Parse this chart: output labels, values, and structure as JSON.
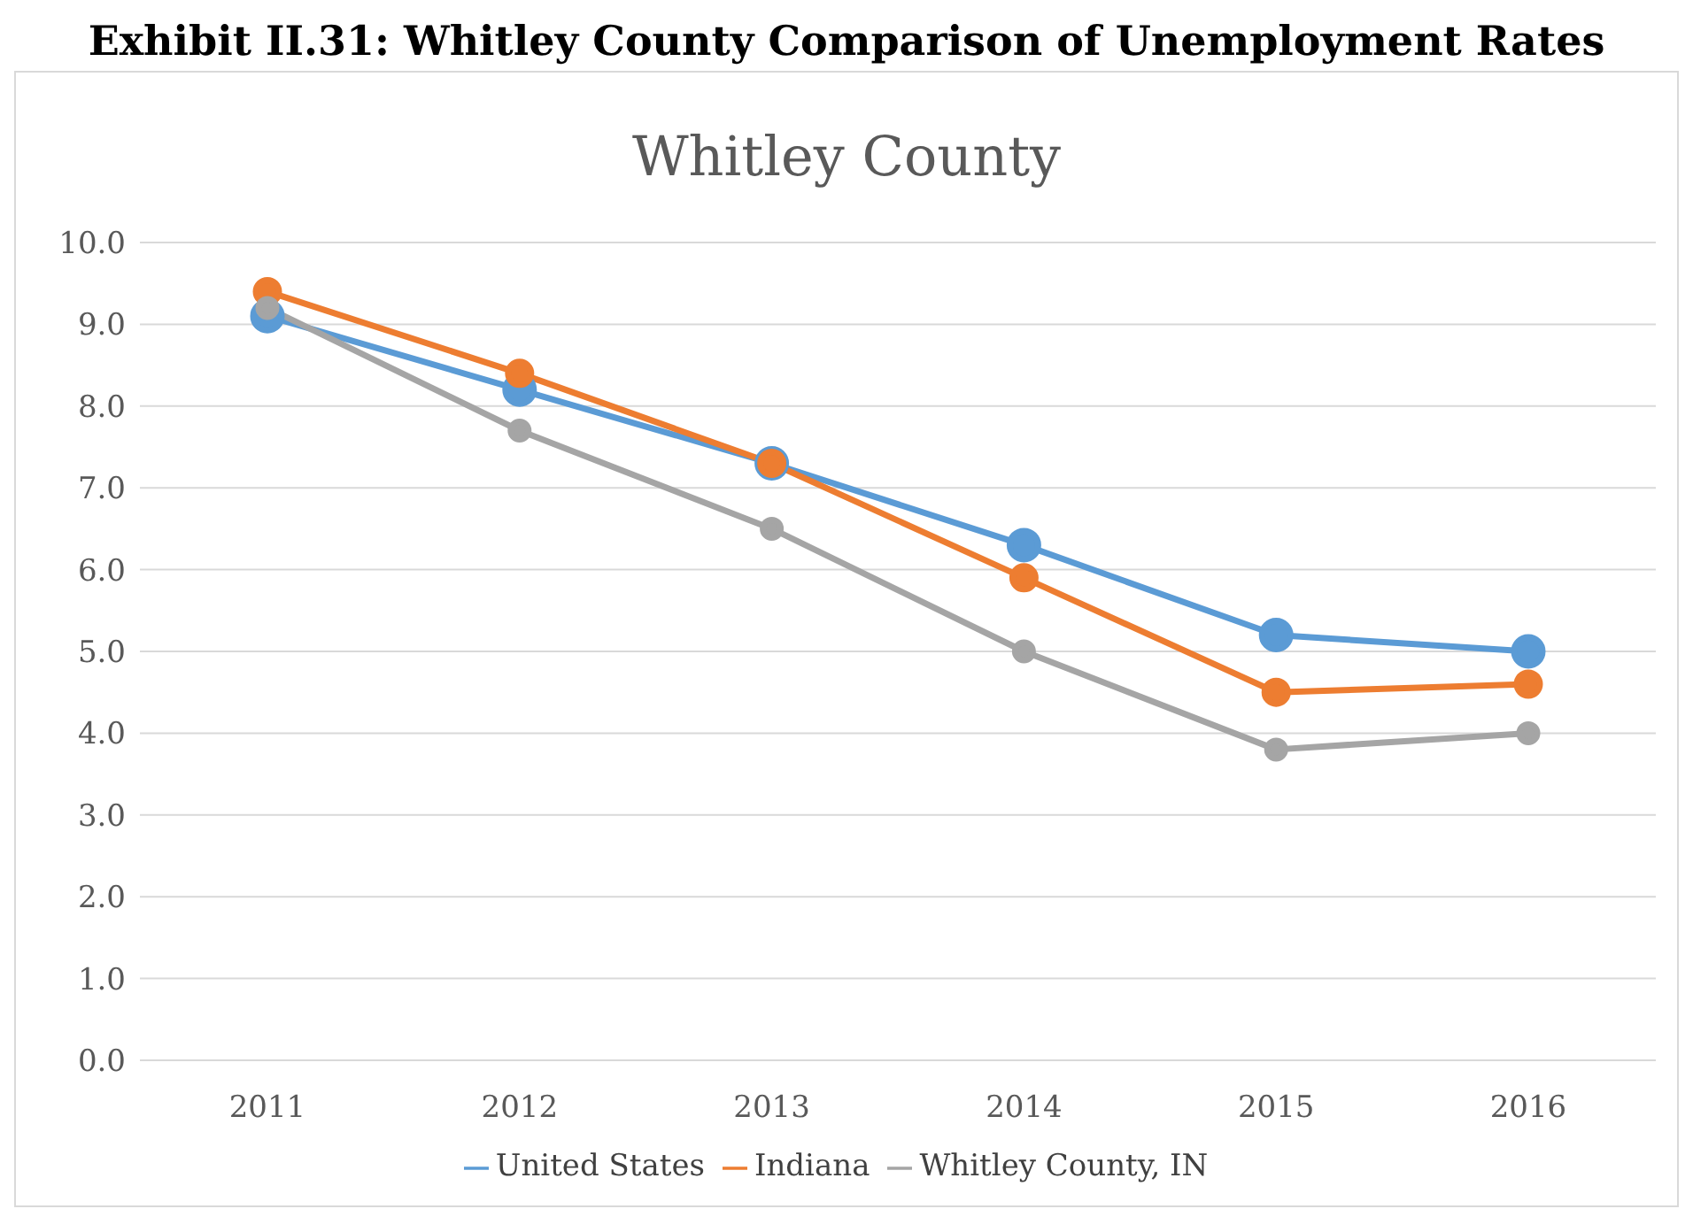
{
  "chart_data": {
    "type": "line",
    "title": "Exhibit II.31: Whitley County Comparison of Unemployment Rates",
    "subtitle": "Whitley County",
    "categories": [
      "2011",
      "2012",
      "2013",
      "2014",
      "2015",
      "2016"
    ],
    "series": [
      {
        "name": "United States",
        "color": "#5b9bd5",
        "values": [
          9.1,
          8.2,
          7.3,
          6.3,
          5.2,
          5.0
        ]
      },
      {
        "name": "Indiana",
        "color": "#ed7d31",
        "values": [
          9.4,
          8.4,
          7.3,
          5.9,
          4.5,
          4.6
        ]
      },
      {
        "name": "Whitley County, IN",
        "color": "#a5a5a5",
        "values": [
          9.2,
          7.7,
          6.5,
          5.0,
          3.8,
          4.0
        ]
      }
    ],
    "ylim": [
      0,
      10
    ],
    "yticks": [
      {
        "value": 0,
        "label": "0.0"
      },
      {
        "value": 1,
        "label": "1.0"
      },
      {
        "value": 2,
        "label": "2.0"
      },
      {
        "value": 3,
        "label": "3.0"
      },
      {
        "value": 4,
        "label": "4.0"
      },
      {
        "value": 5,
        "label": "5.0"
      },
      {
        "value": 6,
        "label": "6.0"
      },
      {
        "value": 7,
        "label": "7.0"
      },
      {
        "value": 8,
        "label": "8.0"
      },
      {
        "value": 9,
        "label": "9.0"
      },
      {
        "value": 10,
        "label": "10.0"
      }
    ],
    "grid": "y",
    "legend": "bottom",
    "marker": "circle",
    "line_style": "solid"
  }
}
